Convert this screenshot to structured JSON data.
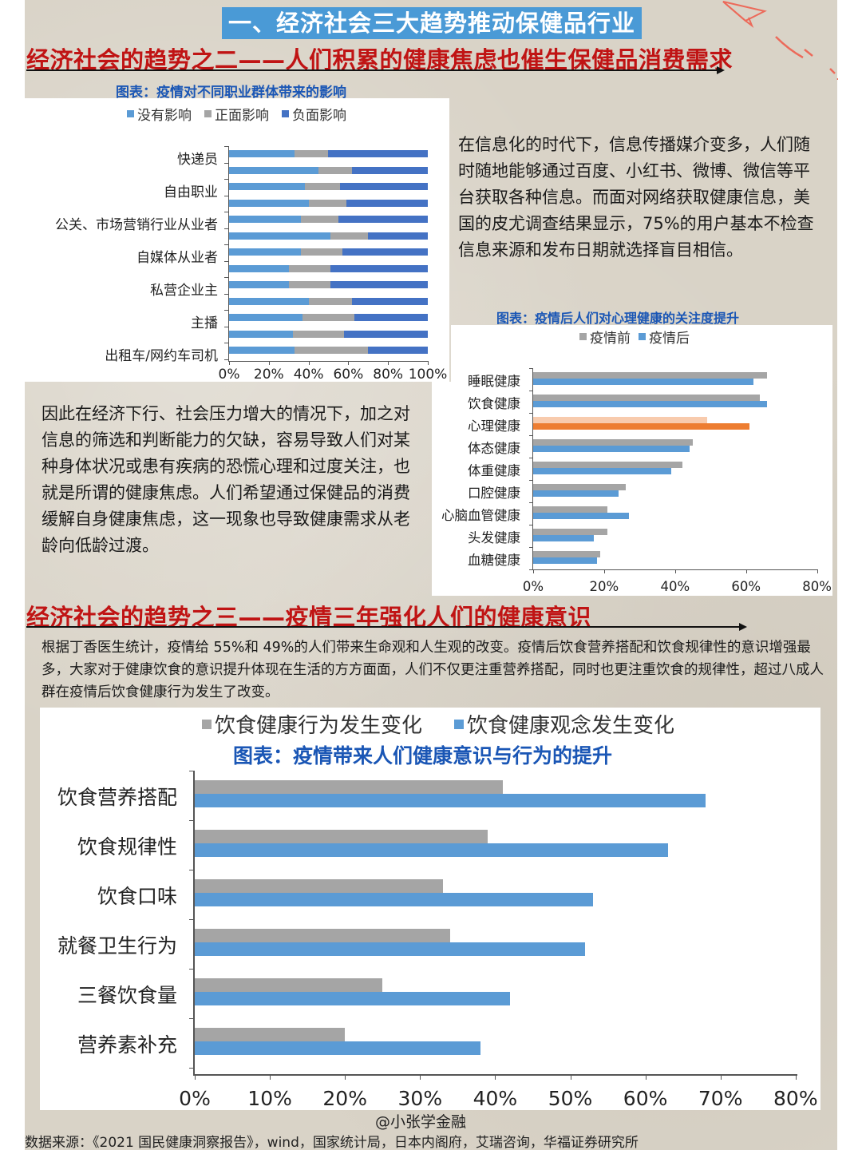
{
  "header": {
    "banner": "一、经济社会三大趋势推动保健品行业",
    "section2_title": "经济社会的趋势之二——人们积累的健康焦虑也催生保健品消费需求",
    "section3_title": "经济社会的趋势之三——疫情三年强化人们的健康意识"
  },
  "paragraphs": {
    "info_era": "在信息化的时代下，信息传播媒介变多，人们随时随地能够通过百度、小红书、微博、微信等平台获取各种信息。而面对网络获取健康信息，美国的皮尤调查结果显示，75%的用户基本不检查信息来源和发布日期就选择盲目相信。",
    "health_anxiety": "因此在经济下行、社会压力增大的情况下，加之对信息的筛选和判断能力的欠缺，容易导致人们对某种身体状况或患有疾病的恐慌心理和过度关注，也就是所谓的健康焦虑。人们希望通过保健品的消费缓解自身健康焦虑，这一现象也导致健康需求从老龄向低龄过渡。",
    "dxy_stats": "根据丁香医生统计，疫情给 55%和 49%的人们带来生命观和人生观的改变。疫情后饮食营养搭配和饮食规律性的意识增强最多，大家对于健康饮食的意识提升体现在生活的方方面面，人们不仅更注重营养搭配，同时也更注重饮食的规律性，超过八成人群在疫情后饮食健康行为发生了改变。"
  },
  "footer": {
    "watermark": "@小张学金融",
    "source": "数据来源：《2021 国民健康洞察报告》，wind，国家统计局，日本内阁府，艾瑞咨询，华福证券研究所"
  },
  "colors": {
    "banner_bg": "#4a9ad6",
    "heading_red": "#c01414",
    "caption_blue": "#1a56b5",
    "light_blue": "#5b9bd5",
    "gray": "#a5a5a5",
    "dark_blue": "#4472c4",
    "orange": "#ed7d31",
    "light_orange": "#f8cbad"
  },
  "chart_data": [
    {
      "type": "bar",
      "stacked": true,
      "orientation": "horizontal",
      "title": "图表：疫情对不同职业群体带来的影响",
      "legend": [
        "没有影响",
        "正面影响",
        "负面影响"
      ],
      "category_labels": [
        "快递员",
        "自由职业",
        "公关、市场营销行业从业者",
        "自媒体从业者",
        "私营企业主",
        "主播",
        "出租车/网约车司机"
      ],
      "bar_count": 13,
      "series": [
        {
          "name": "没有影响",
          "color": "#5b9bd5",
          "values": [
            33,
            45,
            38,
            40,
            36,
            51,
            36,
            30,
            30,
            40,
            37,
            32,
            33
          ]
        },
        {
          "name": "正面影响",
          "color": "#a5a5a5",
          "values": [
            17,
            17,
            18,
            19,
            19,
            19,
            21,
            21,
            21,
            22,
            26,
            26,
            37
          ]
        },
        {
          "name": "负面影响",
          "color": "#4472c4",
          "values": [
            50,
            38,
            44,
            41,
            45,
            30,
            43,
            49,
            49,
            38,
            37,
            42,
            30
          ]
        }
      ],
      "xticks": [
        "0%",
        "20%",
        "40%",
        "60%",
        "80%",
        "100%"
      ],
      "xlim": [
        0,
        100
      ]
    },
    {
      "type": "bar",
      "orientation": "horizontal",
      "title": "图表：疫情后人们对心理健康的关注度提升",
      "legend": [
        "疫情前",
        "疫情后"
      ],
      "categories": [
        "睡眠健康",
        "饮食健康",
        "心理健康",
        "体态健康",
        "体重健康",
        "口腔健康",
        "心脑血管健康",
        "头发健康",
        "血糖健康"
      ],
      "series": [
        {
          "name": "疫情前",
          "color": "#a5a5a5",
          "values": [
            66,
            64,
            49,
            45,
            42,
            26,
            21,
            21,
            19
          ]
        },
        {
          "name": "疫情后",
          "color": "#5b9bd5",
          "values": [
            62,
            66,
            61,
            44,
            39,
            24,
            27,
            17,
            18
          ]
        }
      ],
      "highlight": {
        "category": "心理健康",
        "colors": [
          "#f8cbad",
          "#ed7d31"
        ]
      },
      "xticks": [
        "0%",
        "20%",
        "40%",
        "60%",
        "80%"
      ],
      "xlim": [
        0,
        80
      ]
    },
    {
      "type": "bar",
      "orientation": "horizontal",
      "title": "图表：疫情带来人们健康意识与行为的提升",
      "legend": [
        "饮食健康行为发生变化",
        "饮食健康观念发生变化"
      ],
      "categories": [
        "饮食营养搭配",
        "饮食规律性",
        "饮食口味",
        "就餐卫生行为",
        "三餐饮食量",
        "营养素补充"
      ],
      "series": [
        {
          "name": "饮食健康行为发生变化",
          "color": "#a5a5a5",
          "values": [
            41,
            39,
            33,
            34,
            25,
            20
          ]
        },
        {
          "name": "饮食健康观念发生变化",
          "color": "#5b9bd5",
          "values": [
            68,
            63,
            53,
            52,
            42,
            38
          ]
        }
      ],
      "xticks": [
        "0%",
        "10%",
        "20%",
        "30%",
        "40%",
        "50%",
        "60%",
        "70%",
        "80%"
      ],
      "xlim": [
        0,
        80
      ]
    }
  ]
}
